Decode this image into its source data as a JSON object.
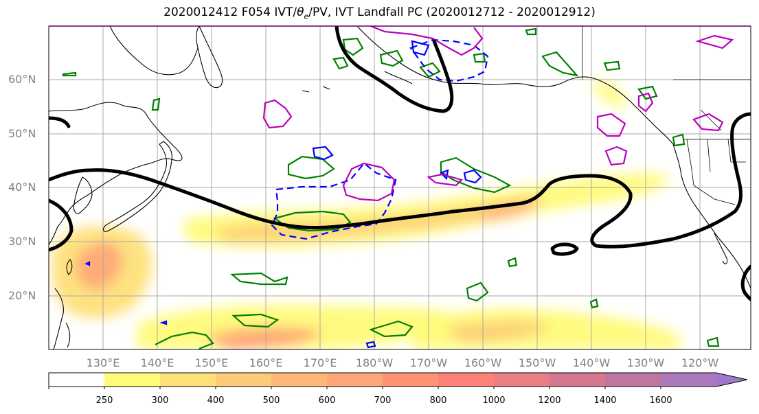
{
  "title": {
    "prefix": "2020012412 F054 IVT/",
    "theta": "θ",
    "theta_sub": "e",
    "suffix": "/PV, IVT Landfall PC (2020012712 - 2020012912)"
  },
  "latitude_labels": [
    "60°N",
    "50°N",
    "40°N",
    "30°N",
    "20°N"
  ],
  "longitude_labels": [
    "130°E",
    "140°E",
    "150°E",
    "160°E",
    "170°E",
    "180°W",
    "170°W",
    "160°W",
    "150°W",
    "140°W",
    "130°W",
    "120°W"
  ],
  "colorbar": {
    "labels": [
      "250",
      "300",
      "400",
      "500",
      "600",
      "700",
      "800",
      "1000",
      "1200",
      "1400",
      "1600"
    ],
    "colors": [
      "#ffffff",
      "#fffb79",
      "#fee079",
      "#fdcb78",
      "#fdb878",
      "#fea678",
      "#ff9373",
      "#fd8176",
      "#ec7d84",
      "#d5778f",
      "#bf779f",
      "#ab79bc",
      "#9e79c9"
    ]
  },
  "contour_colors": {
    "ivt_landfall": "#000000",
    "theta_e_positive": "#008000",
    "theta_e_negative": "#0000ff",
    "pv": "#bb00bb",
    "coastline": "#000000"
  }
}
